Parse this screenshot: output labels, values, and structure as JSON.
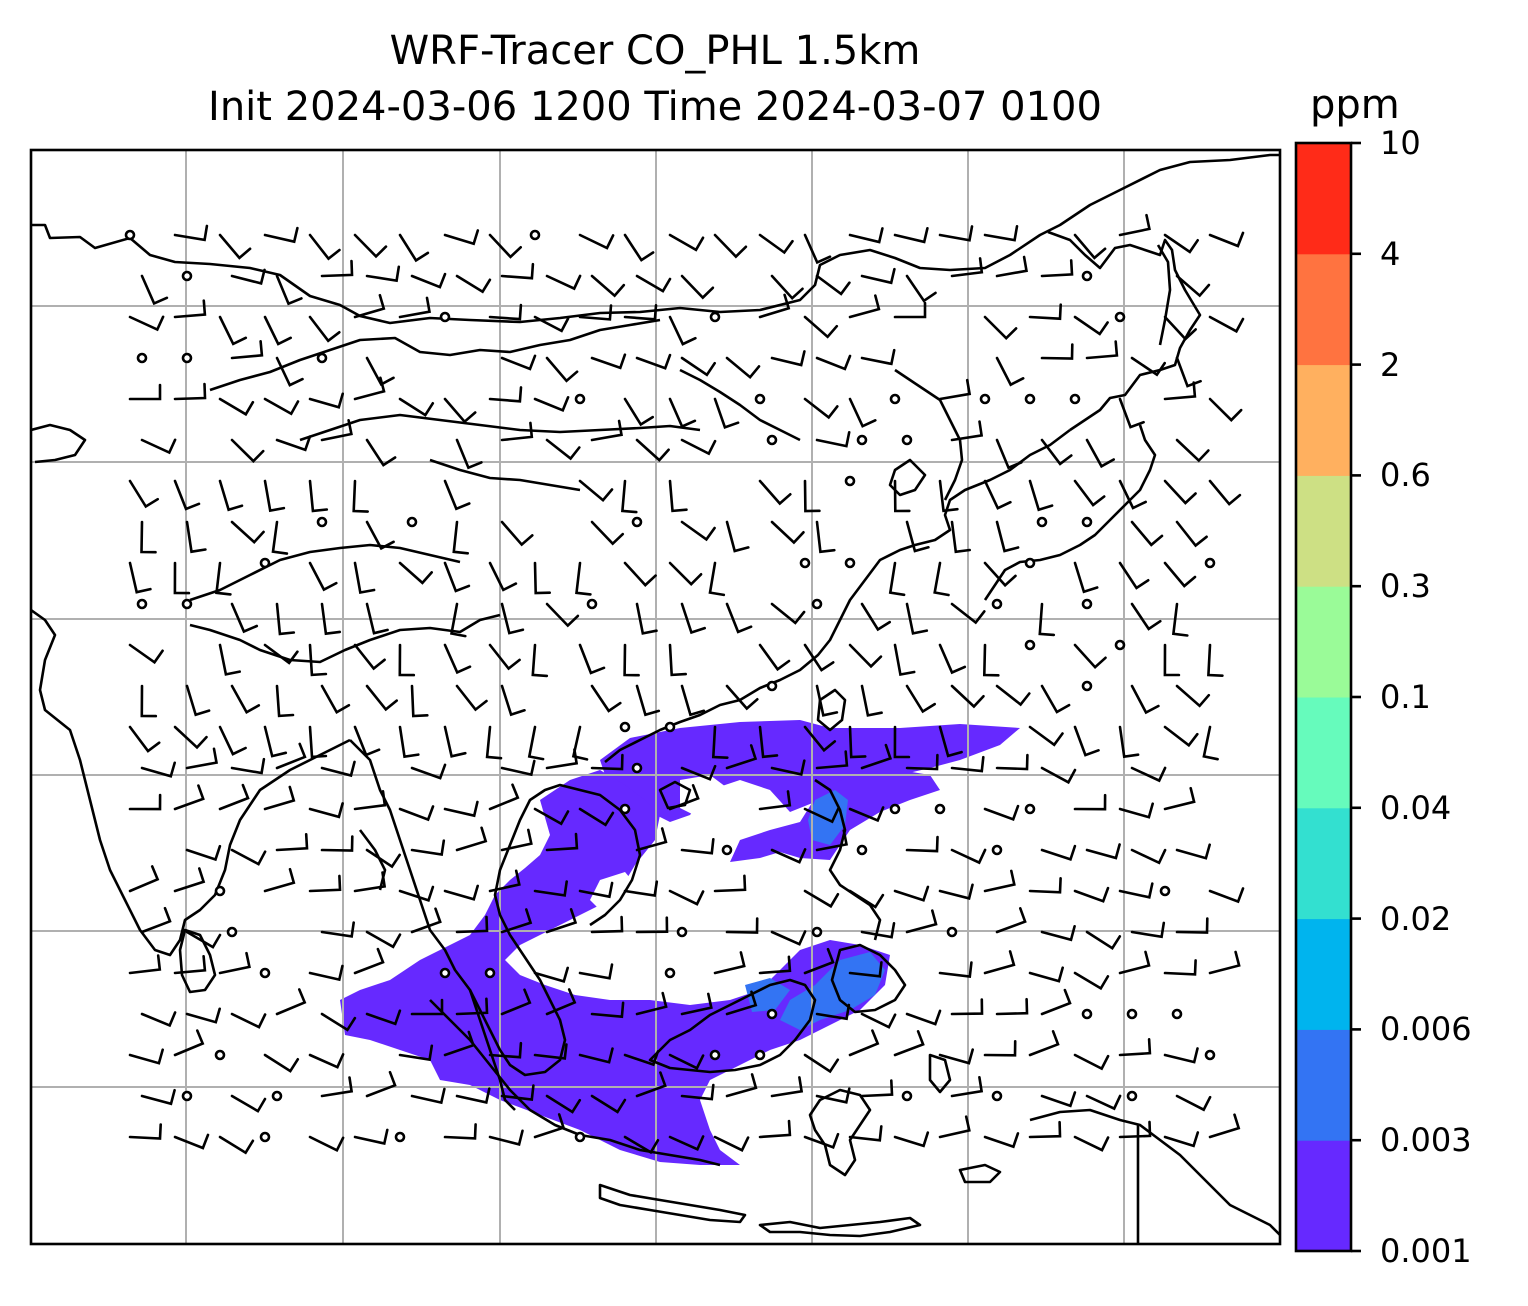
{
  "title": {
    "line1": "WRF-Tracer CO_PHL 1.5km",
    "line2": "Init 2024-03-06 1200 Time 2024-03-07 0100"
  },
  "colorbar": {
    "unit": "ppm",
    "ticks": [
      "0.001",
      "0.003",
      "0.006",
      "0.02",
      "0.04",
      "0.1",
      "0.3",
      "0.6",
      "2",
      "4",
      "10"
    ],
    "colors": [
      "#6629ff",
      "#3374f3",
      "#00b4ee",
      "#33e0d0",
      "#66fbbc",
      "#9afb98",
      "#cde084",
      "#ffb05f",
      "#ff7340",
      "#ff2b18"
    ]
  },
  "map": {
    "tracer_color": "#6629ff",
    "tracer_core_color": "#3374f3",
    "gridline_color": "#b0b0b0",
    "coastline_color": "#000000"
  }
}
